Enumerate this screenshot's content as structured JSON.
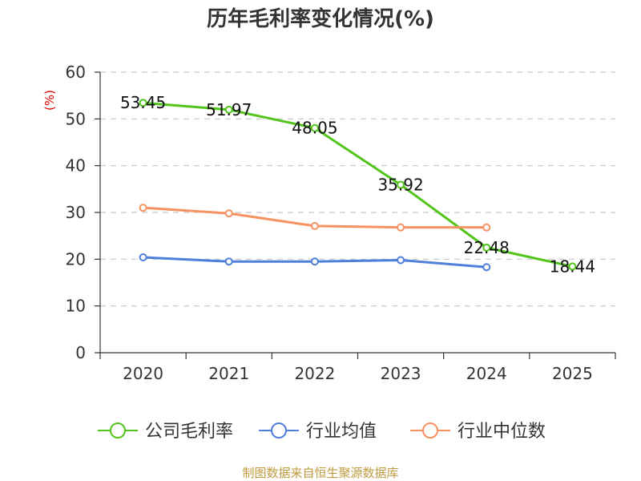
{
  "chart_data": {
    "type": "line",
    "title": "历年毛利率变化情况(%)",
    "xlabel": "",
    "ylabel": "(%)",
    "categories": [
      "2020",
      "2021",
      "2022",
      "2023",
      "2024",
      "2025"
    ],
    "ylim": [
      0,
      60
    ],
    "yticks": [
      0,
      10,
      20,
      30,
      40,
      50,
      60
    ],
    "grid": true,
    "legend_position": "bottom",
    "series": [
      {
        "name": "公司毛利率",
        "color": "#52c41a",
        "show_labels": true,
        "values": [
          53.45,
          51.97,
          48.05,
          35.92,
          22.48,
          18.44
        ]
      },
      {
        "name": "行业均值",
        "color": "#4e7fd9",
        "show_labels": false,
        "values": [
          20.4,
          19.5,
          19.5,
          19.8,
          18.3,
          null
        ]
      },
      {
        "name": "行业中位数",
        "color": "#f79262",
        "show_labels": false,
        "values": [
          31.0,
          29.8,
          27.1,
          26.8,
          26.8,
          null
        ]
      }
    ]
  },
  "colors": {
    "title": "#333333",
    "unit_label": "#e60000",
    "axis": "#333333",
    "tick_text": "#333333",
    "grid": "#c8c8c8",
    "footer": "#bf9a40"
  },
  "footer": {
    "source": "制图数据来自恒生聚源数据库"
  }
}
